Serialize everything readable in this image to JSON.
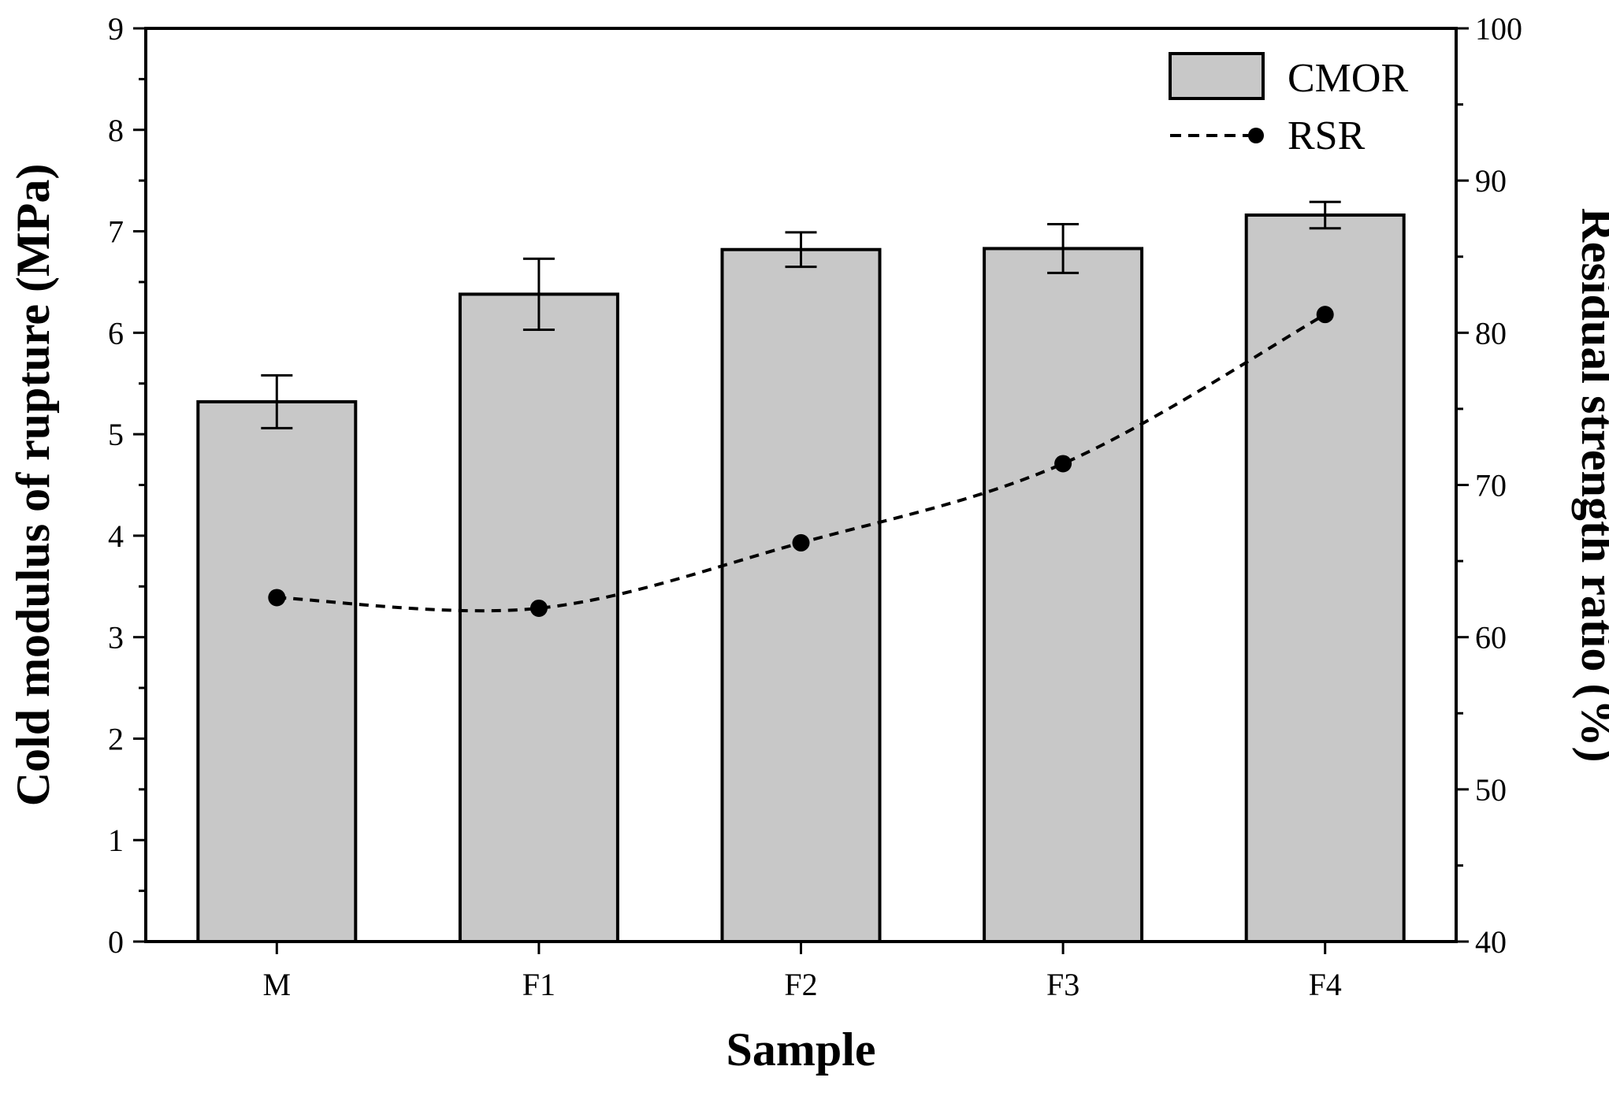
{
  "chart_data": {
    "type": "bar",
    "categories": [
      "M",
      "F1",
      "F2",
      "F3",
      "F4"
    ],
    "series": [
      {
        "name": "CMOR",
        "type": "bar",
        "axis": "left",
        "values": [
          5.32,
          6.38,
          6.82,
          6.83,
          7.16
        ],
        "errors": [
          0.26,
          0.35,
          0.17,
          0.24,
          0.13
        ],
        "color": "#c8c8c8"
      },
      {
        "name": "RSR",
        "type": "line",
        "axis": "right",
        "line_style": "dashed",
        "marker": "circle",
        "values": [
          62.6,
          61.9,
          66.2,
          71.4,
          81.2
        ],
        "color": "#000000"
      }
    ],
    "xlabel": "Sample",
    "ylabel": "Cold modulus of rupture (MPa)",
    "y2label": "Residual strength ratio (%)",
    "ylim": [
      0,
      9
    ],
    "y2lim": [
      40,
      100
    ],
    "yticks": [
      "0",
      "1",
      "2",
      "3",
      "4",
      "5",
      "6",
      "7",
      "8",
      "9"
    ],
    "y2ticks": [
      "40",
      "50",
      "60",
      "70",
      "80",
      "90",
      "100"
    ],
    "legend_position": "top-right",
    "grid": false
  }
}
